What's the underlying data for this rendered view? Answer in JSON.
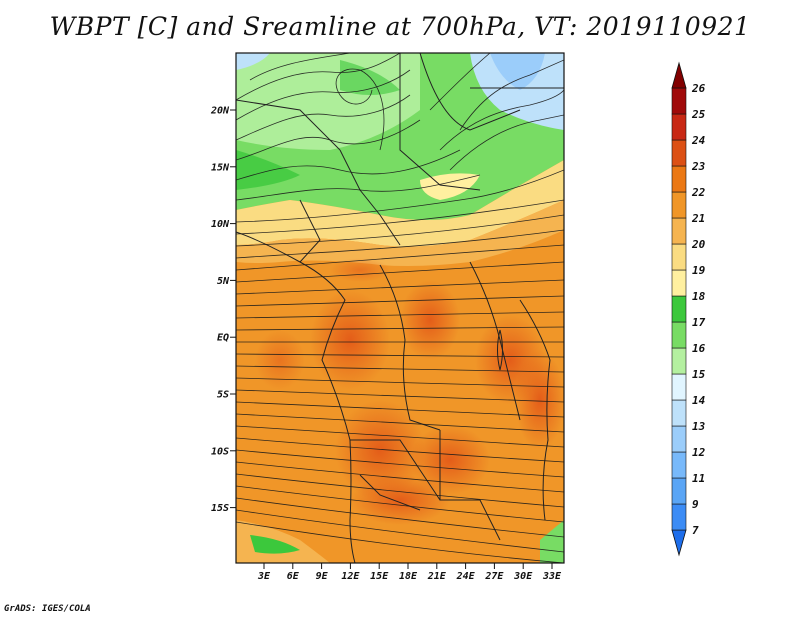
{
  "title": "WBPT [C] and Sreamline at 700hPa, VT: 2019110921",
  "credit": "GrADS: IGES/COLA",
  "axes": {
    "lat_labels": [
      "20N",
      "15N",
      "10N",
      "5N",
      "EQ",
      "5S",
      "10S",
      "15S"
    ],
    "lon_labels": [
      "3E",
      "6E",
      "9E",
      "12E",
      "15E",
      "18E",
      "21E",
      "24E",
      "27E",
      "30E",
      "33E"
    ]
  },
  "colorbar": {
    "labels": [
      "7",
      "9",
      "11",
      "12",
      "13",
      "14",
      "15",
      "16",
      "17",
      "18",
      "19",
      "20",
      "21",
      "22",
      "23",
      "24",
      "25",
      "26"
    ],
    "colors": [
      "#1e6eeb",
      "#3c8cf5",
      "#5aa5f5",
      "#78b9fa",
      "#9bcdfa",
      "#bee1fa",
      "#e1f5ff",
      "#b4f0a0",
      "#78dc64",
      "#3cc83c",
      "#fff0a0",
      "#fadc82",
      "#f5b450",
      "#f09628",
      "#eb7814",
      "#dc5014",
      "#c82814",
      "#a00a0a",
      "#820000"
    ]
  }
}
